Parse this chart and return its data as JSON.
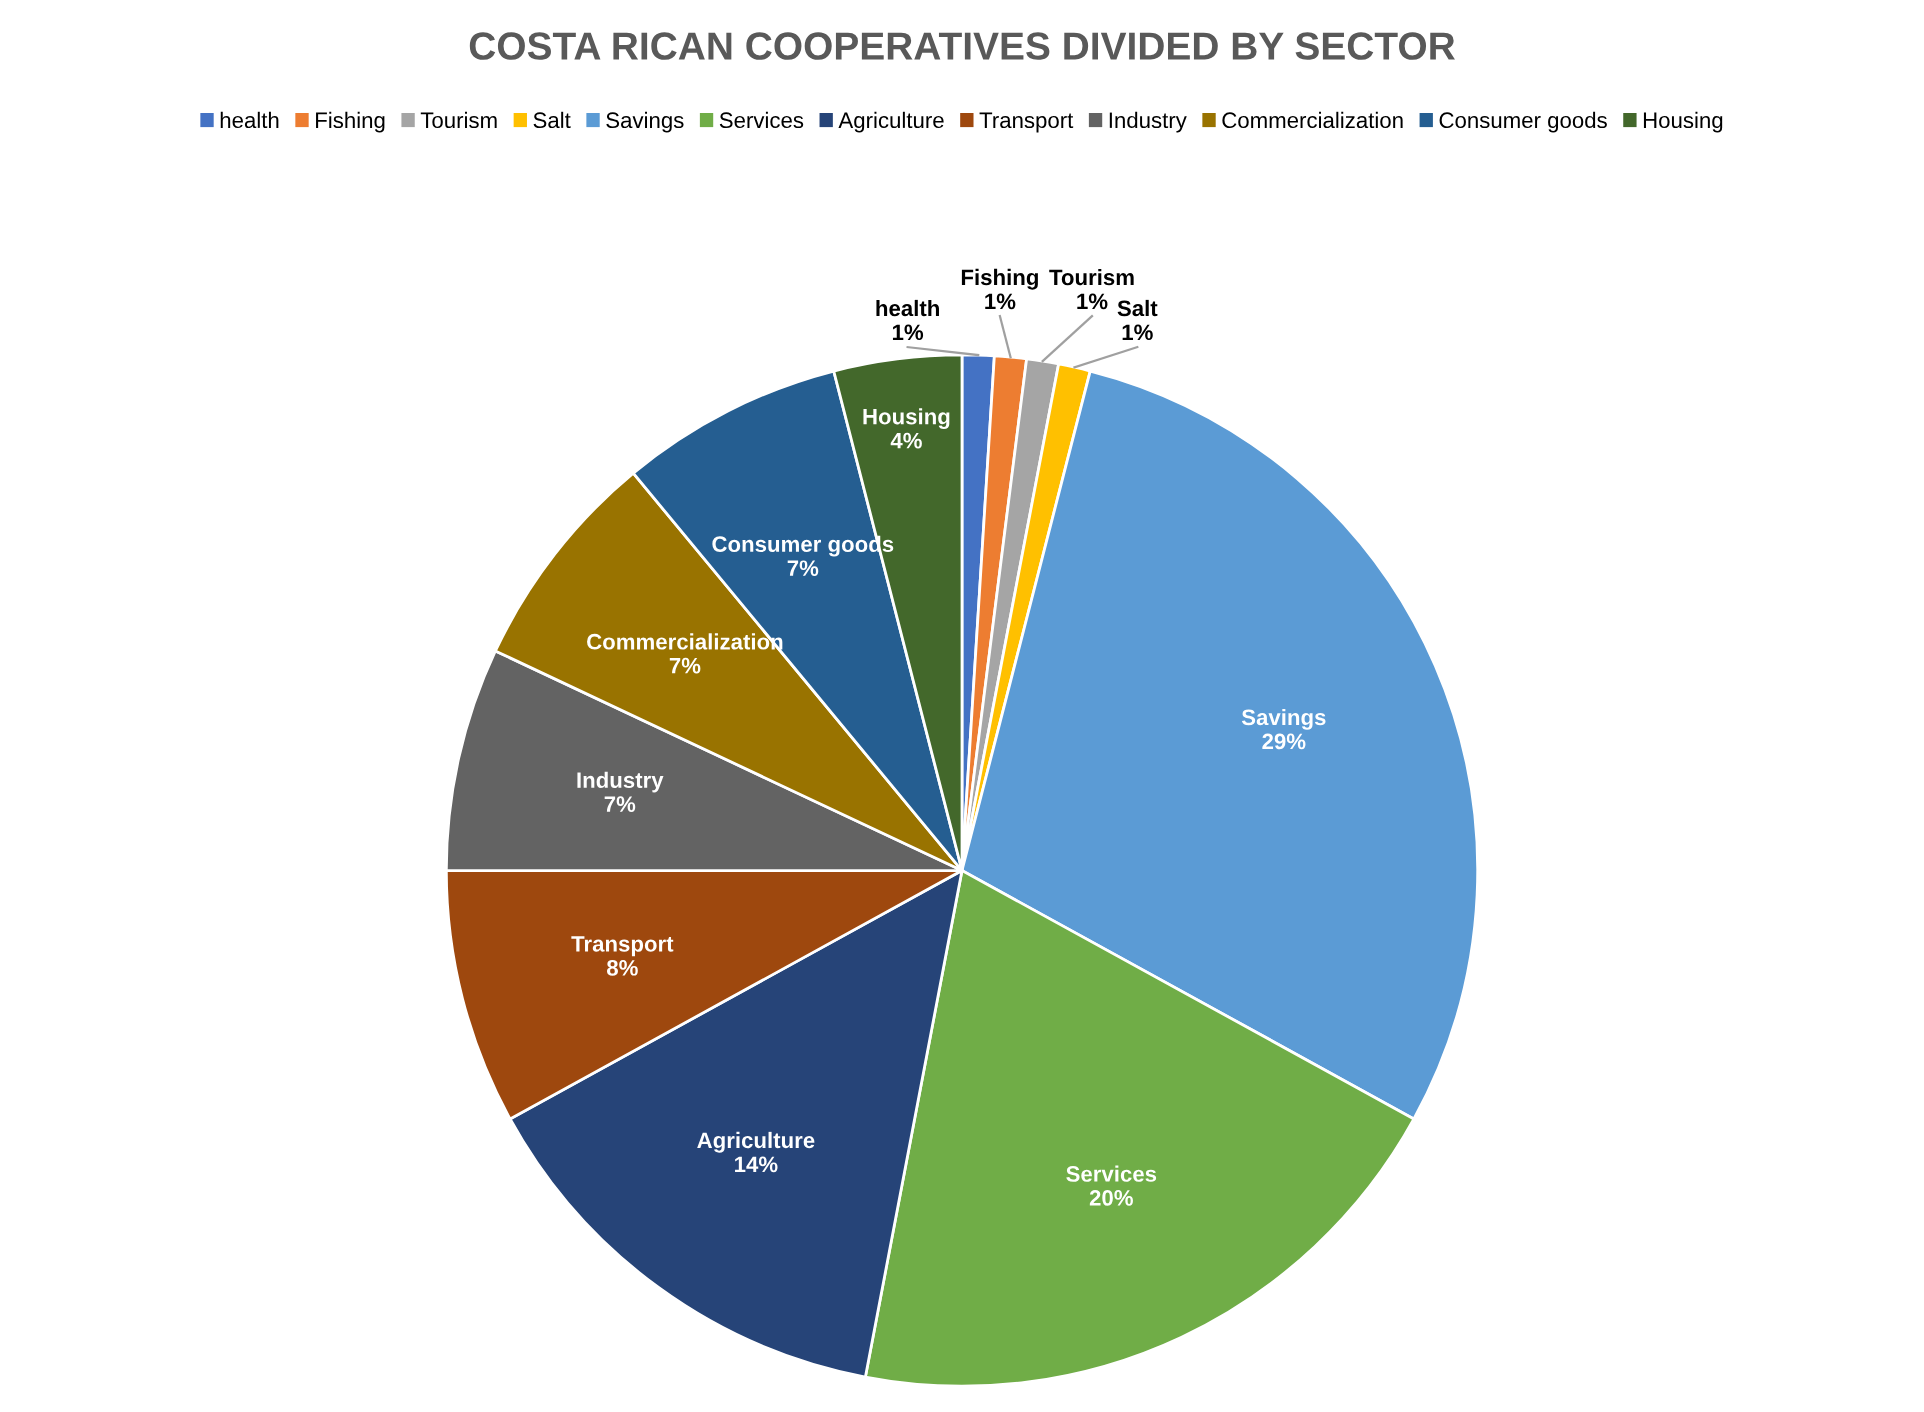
{
  "chart_data": {
    "type": "pie",
    "title": "COSTA RICAN COOPERATIVES DIVIDED BY SECTOR",
    "categories": [
      "health",
      "Fishing",
      "Tourism",
      "Salt",
      "Savings",
      "Services",
      "Agriculture",
      "Transport",
      "Industry",
      "Commercialization",
      "Consumer goods",
      "Housing"
    ],
    "values": [
      1,
      1,
      1,
      1,
      29,
      20,
      14,
      8,
      7,
      7,
      7,
      4
    ],
    "value_labels": [
      "1%",
      "1%",
      "1%",
      "1%",
      "29%",
      "20%",
      "14%",
      "8%",
      "7%",
      "7%",
      "7%",
      "4%"
    ],
    "colors": [
      "#4472c4",
      "#ed7d31",
      "#a5a5a5",
      "#ffc000",
      "#5b9bd5",
      "#70ad47",
      "#264478",
      "#9e480e",
      "#636363",
      "#997300",
      "#255e91",
      "#43682b"
    ],
    "legend": "top"
  }
}
